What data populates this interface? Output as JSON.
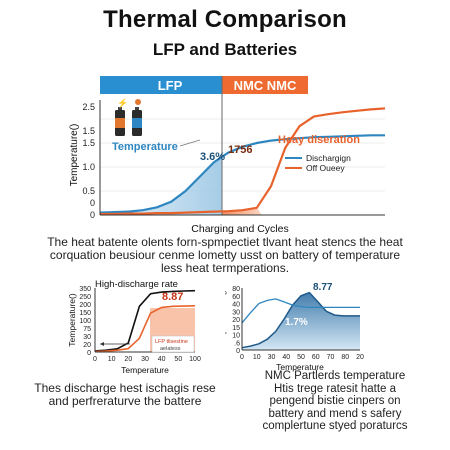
{
  "header": {
    "title": "Thermal Comparison",
    "subtitle": "LFP and Batteries"
  },
  "colors": {
    "lfp": "#2e86c1",
    "nmc": "#e8622c",
    "lfp_fill": "#bcd9ec",
    "nmc_fill": "#f3a27f",
    "lfp_header": "#2a8fd0",
    "nmc_header": "#ee6a30"
  },
  "chart_data": [
    {
      "type": "line",
      "id": "main",
      "banners": [
        "LFP",
        "NMC NMC"
      ],
      "xlabel": "Charging and Cycles",
      "ylabel": "Temperature()",
      "ylim": [
        0,
        2.5
      ],
      "y_ticks": [
        "0",
        "0",
        "0.5",
        "1.0",
        "1.5",
        "1.5",
        "2.5"
      ],
      "grid": true,
      "annotations": {
        "temperature_label": "Temperature",
        "lfp_value": "3.6%",
        "nmc_value": "1756",
        "heay_label": "Heay diseration"
      },
      "legend": {
        "position": "right",
        "entries": [
          "Dischargign",
          "Off Oueey"
        ]
      },
      "x": [
        0,
        0.05,
        0.1,
        0.15,
        0.2,
        0.25,
        0.3,
        0.35,
        0.4,
        0.45,
        0.5,
        0.55,
        0.6,
        0.65,
        0.7,
        0.75,
        0.8,
        0.85,
        0.9,
        0.95,
        1.0
      ],
      "series": [
        {
          "values": [
            0.05,
            0.06,
            0.07,
            0.1,
            0.16,
            0.28,
            0.5,
            0.8,
            1.1,
            1.3,
            1.42,
            1.5,
            1.55,
            1.58,
            1.6,
            1.62,
            1.63,
            1.64,
            1.65,
            1.66,
            1.66
          ]
        },
        {
          "values": [
            0.02,
            0.02,
            0.03,
            0.03,
            0.04,
            0.04,
            0.05,
            0.06,
            0.07,
            0.08,
            0.1,
            0.15,
            0.6,
            1.4,
            1.85,
            2.05,
            2.1,
            2.14,
            2.17,
            2.2,
            2.22
          ]
        }
      ]
    },
    {
      "type": "line",
      "id": "left",
      "title": "High-discharge rate",
      "value_label": "8.87",
      "xlabel": "Temperature",
      "ylabel": "Temperature()",
      "x_ticks": [
        "0",
        "10",
        "20",
        "30",
        "40",
        "50",
        "100"
      ],
      "y_ticks": [
        "0",
        "20",
        "30",
        "75",
        "100",
        "150",
        "200",
        "250",
        "350"
      ],
      "legend": {
        "position": "bottom-right",
        "entries": [
          "LFP tlisestine",
          "aelatess"
        ]
      },
      "series": [
        {
          "values": [
            5,
            8,
            14,
            40,
            200,
            255,
            262,
            265,
            267,
            268
          ]
        },
        {
          "values": [
            2,
            4,
            8,
            15,
            60,
            170,
            195,
            200,
            201,
            202
          ]
        }
      ]
    },
    {
      "type": "area",
      "id": "right",
      "value_label": "8.77",
      "center_label": "1.7%",
      "xlabel": "Temperature",
      "ylabel": "Temperatuarel()",
      "x_ticks": [
        "0",
        "10",
        "30",
        "40",
        "50",
        "60",
        "70",
        "80",
        "20"
      ],
      "y_ticks": [
        "0",
        ".6",
        "10",
        "15",
        "20",
        "30",
        "40",
        "60",
        "80"
      ],
      "series": [
        {
          "values": [
            3,
            5,
            8,
            14,
            24,
            40,
            58,
            70,
            74,
            62,
            50,
            45,
            44,
            44,
            44
          ]
        },
        {
          "values": [
            35,
            48,
            60,
            64,
            66,
            62,
            58,
            56,
            55,
            55,
            55,
            55,
            55,
            55,
            55
          ]
        }
      ]
    }
  ],
  "text": {
    "middle_lines": [
      "The heat batente olents forn-spmpectiet tlvant heat stencs the heat",
      "corquation beusiour cenme lometty usst on battery of temperature",
      "less heat termperations."
    ],
    "bottom_left_lines": [
      "Thes discharge hest ischagis rese",
      "and perfreraturve the battere"
    ],
    "bottom_right_lines": [
      "NMC Partlerds temperature",
      "Htis trege ratesit hatte a",
      "pengend bistie cinpers on",
      "battery and mend s safery",
      "complertune styed poraturcs"
    ]
  }
}
